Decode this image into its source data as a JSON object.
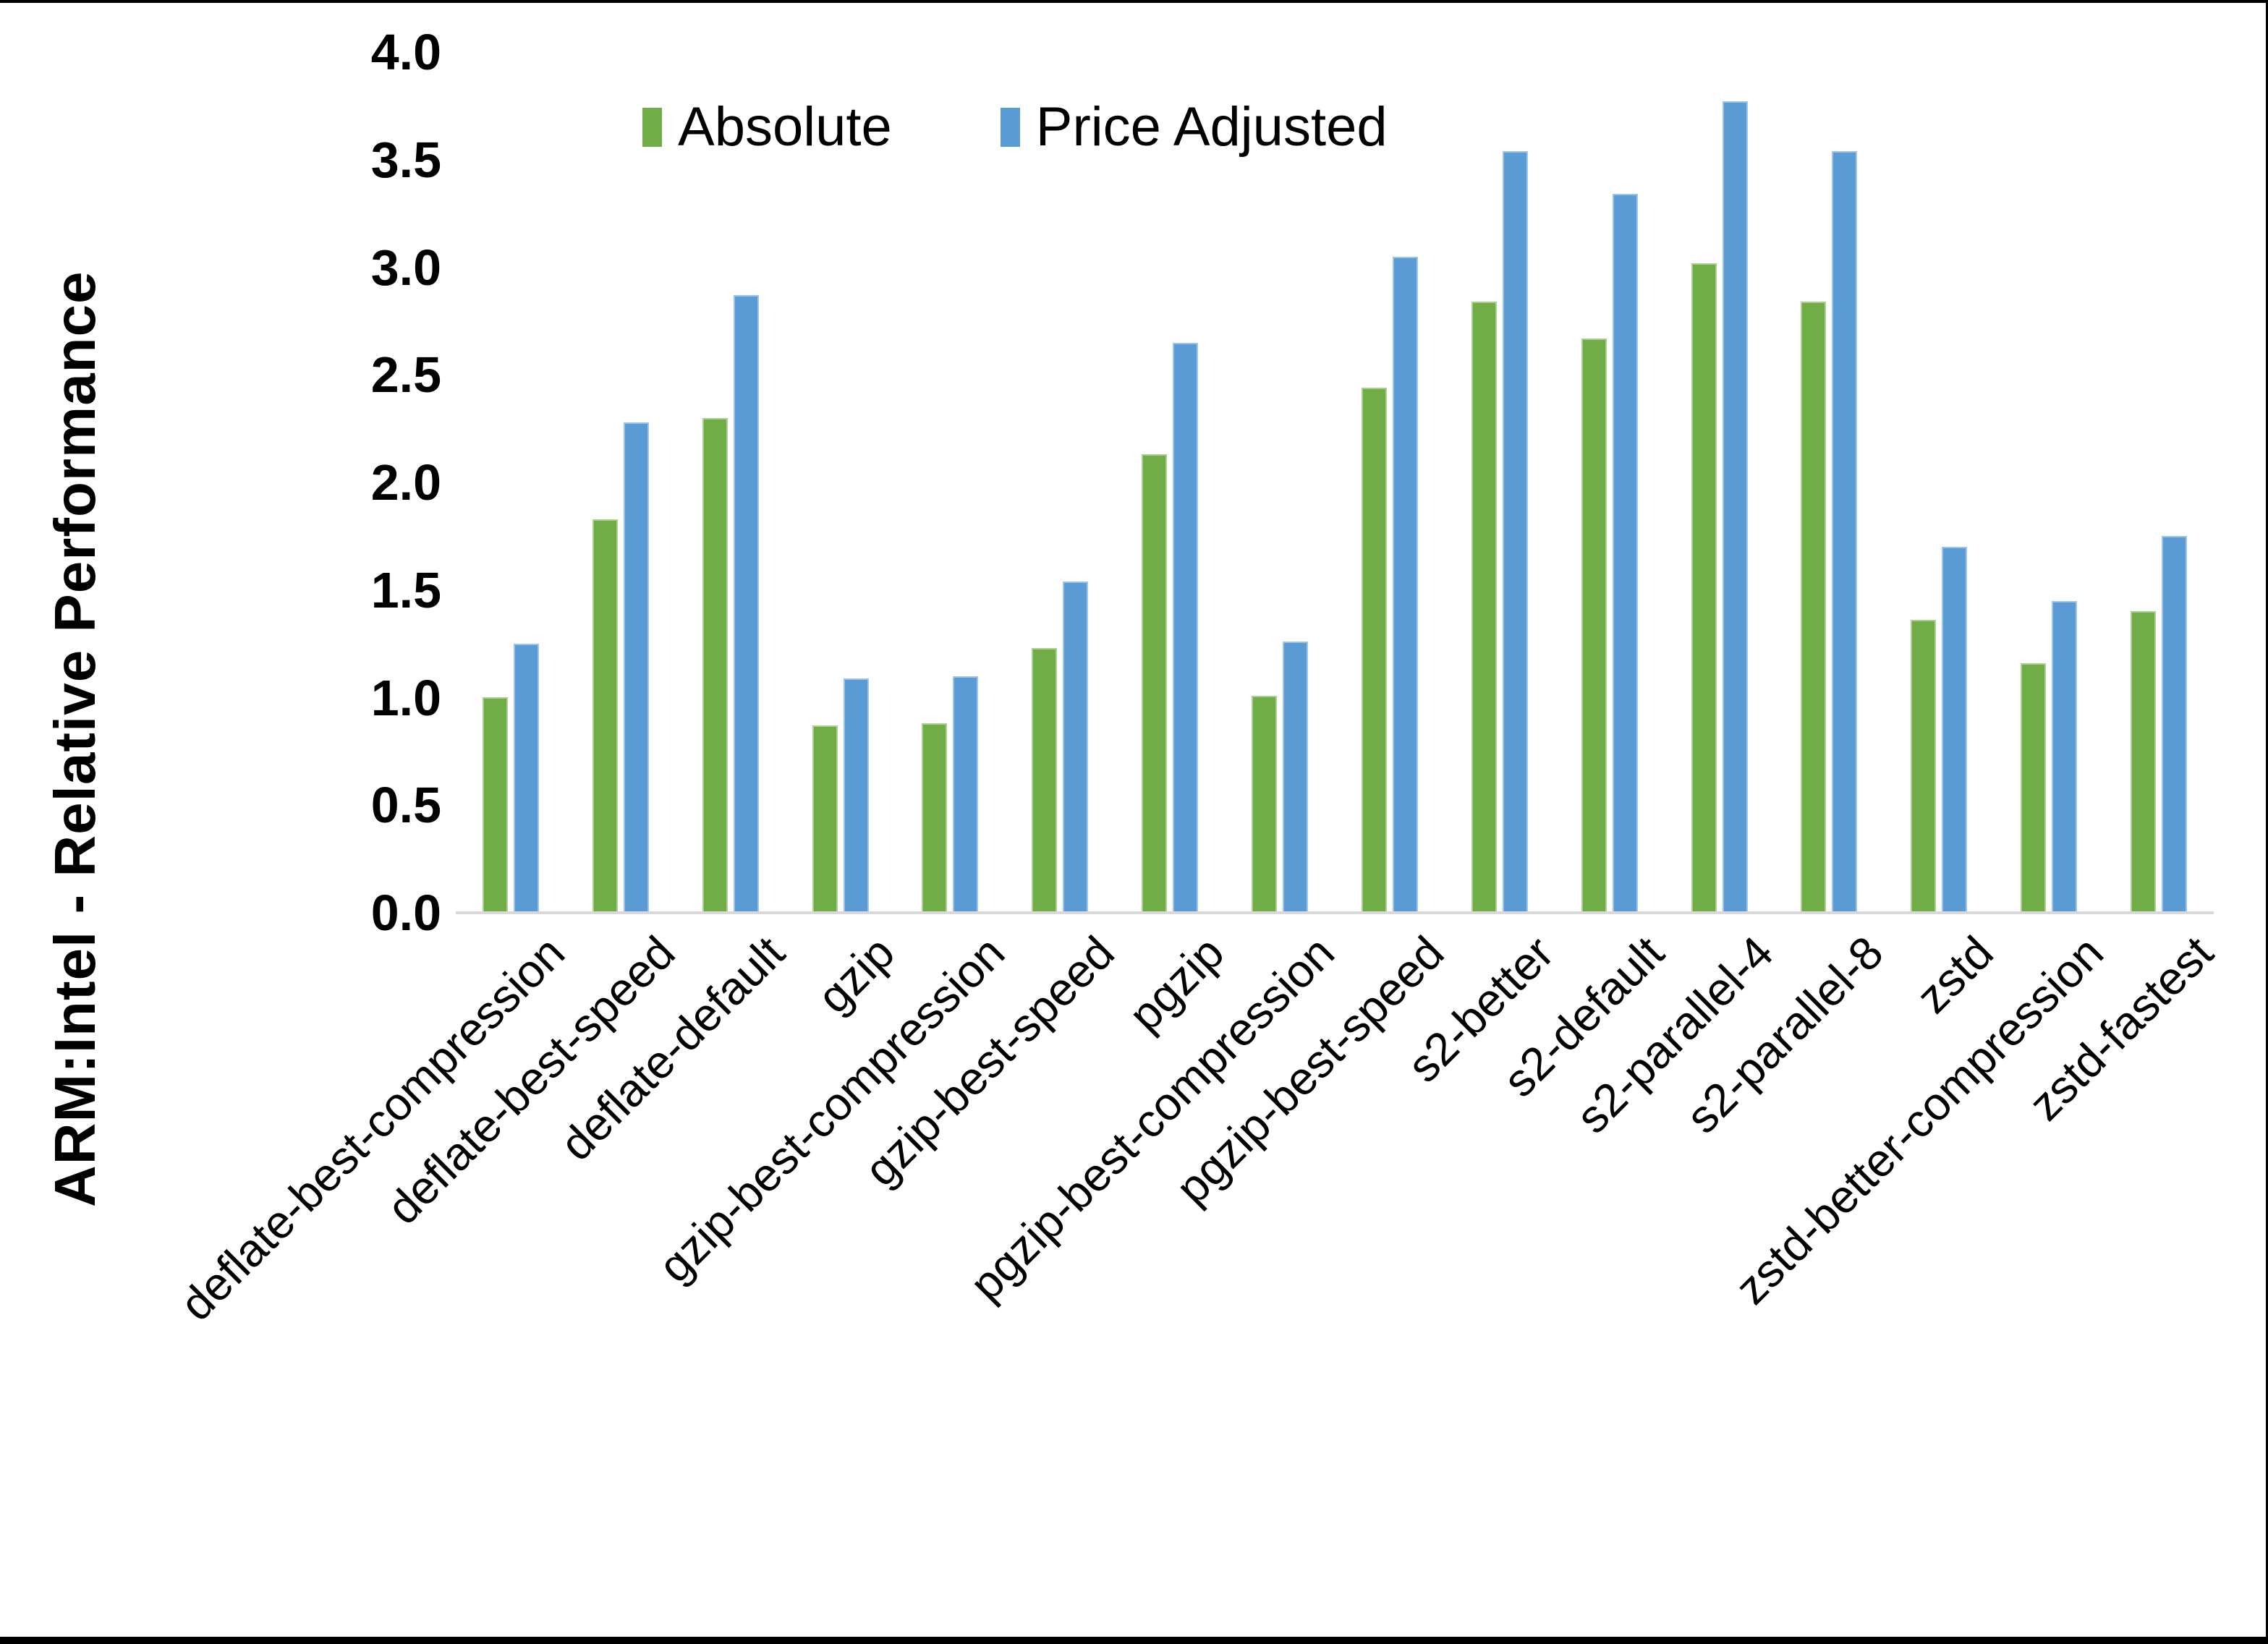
{
  "frame": {
    "border_color": "#000000",
    "background": "#ffffff"
  },
  "chart_data": {
    "type": "bar",
    "title": "",
    "ylabel": "ARM:Intel - Relative Performance",
    "xlabel": "",
    "ylim": [
      0,
      4.0
    ],
    "ytick_step": 0.5,
    "yticks": [
      "4.0",
      "3.5",
      "3.0",
      "2.5",
      "2.0",
      "1.5",
      "1.0",
      "0.5",
      "0.0"
    ],
    "grid": false,
    "legend_position": "top-center",
    "axis_line_color": "#d9d9d9",
    "text_color": "#000000",
    "categories": [
      "deflate-best-compression",
      "deflate-best-speed",
      "deflate-default",
      "gzip",
      "gzip-best-compression",
      "gzip-best-speed",
      "pgzip",
      "pgzip-best-compression",
      "pgzip-best-speed",
      "s2-better",
      "s2-default",
      "s2-parallel-4",
      "s2-parallel-8",
      "zstd",
      "zstd-better-compression",
      "zstd-fastest"
    ],
    "series": [
      {
        "name": "Absolute",
        "color": "#70AD47",
        "edge_color": "#A9D08E",
        "values": [
          1.0,
          1.83,
          2.3,
          0.87,
          0.88,
          1.23,
          2.13,
          1.01,
          2.44,
          2.84,
          2.67,
          3.02,
          2.84,
          1.36,
          1.16,
          1.4
        ]
      },
      {
        "name": "Price Adjusted",
        "color": "#5B9BD5",
        "edge_color": "#9DC3E6",
        "values": [
          1.25,
          2.28,
          2.87,
          1.09,
          1.1,
          1.54,
          2.65,
          1.26,
          3.05,
          3.54,
          3.34,
          3.77,
          3.54,
          1.7,
          1.45,
          1.75
        ]
      }
    ]
  }
}
